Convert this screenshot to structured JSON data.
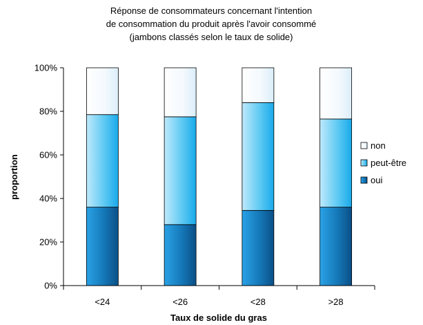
{
  "chart_data": {
    "type": "bar",
    "stacked": true,
    "percent_stacked": true,
    "title_lines": [
      "Réponse de consommateurs concernant l'intention",
      "de consommation du produit après l'avoir consommé",
      "(jambons classés selon le taux de solide)"
    ],
    "xlabel": "Taux de solide du gras",
    "ylabel": "proportion",
    "categories": [
      "<24",
      "<26",
      "<28",
      ">28"
    ],
    "y_ticks": [
      "0%",
      "20%",
      "40%",
      "60%",
      "80%",
      "100%"
    ],
    "ylim": [
      0,
      100
    ],
    "grid": false,
    "legend_position": "right",
    "series": [
      {
        "name": "oui",
        "values": [
          36,
          28,
          34.5,
          36
        ],
        "color": "#1a7fc0"
      },
      {
        "name": "peut-être",
        "values": [
          42.5,
          49.5,
          49.5,
          40.5
        ],
        "color": "#5ec8f2"
      },
      {
        "name": "non",
        "values": [
          21.5,
          22.5,
          16,
          23.5
        ],
        "color": "#f2f9fd"
      }
    ],
    "legend_order": [
      "non",
      "peut-être",
      "oui"
    ]
  }
}
